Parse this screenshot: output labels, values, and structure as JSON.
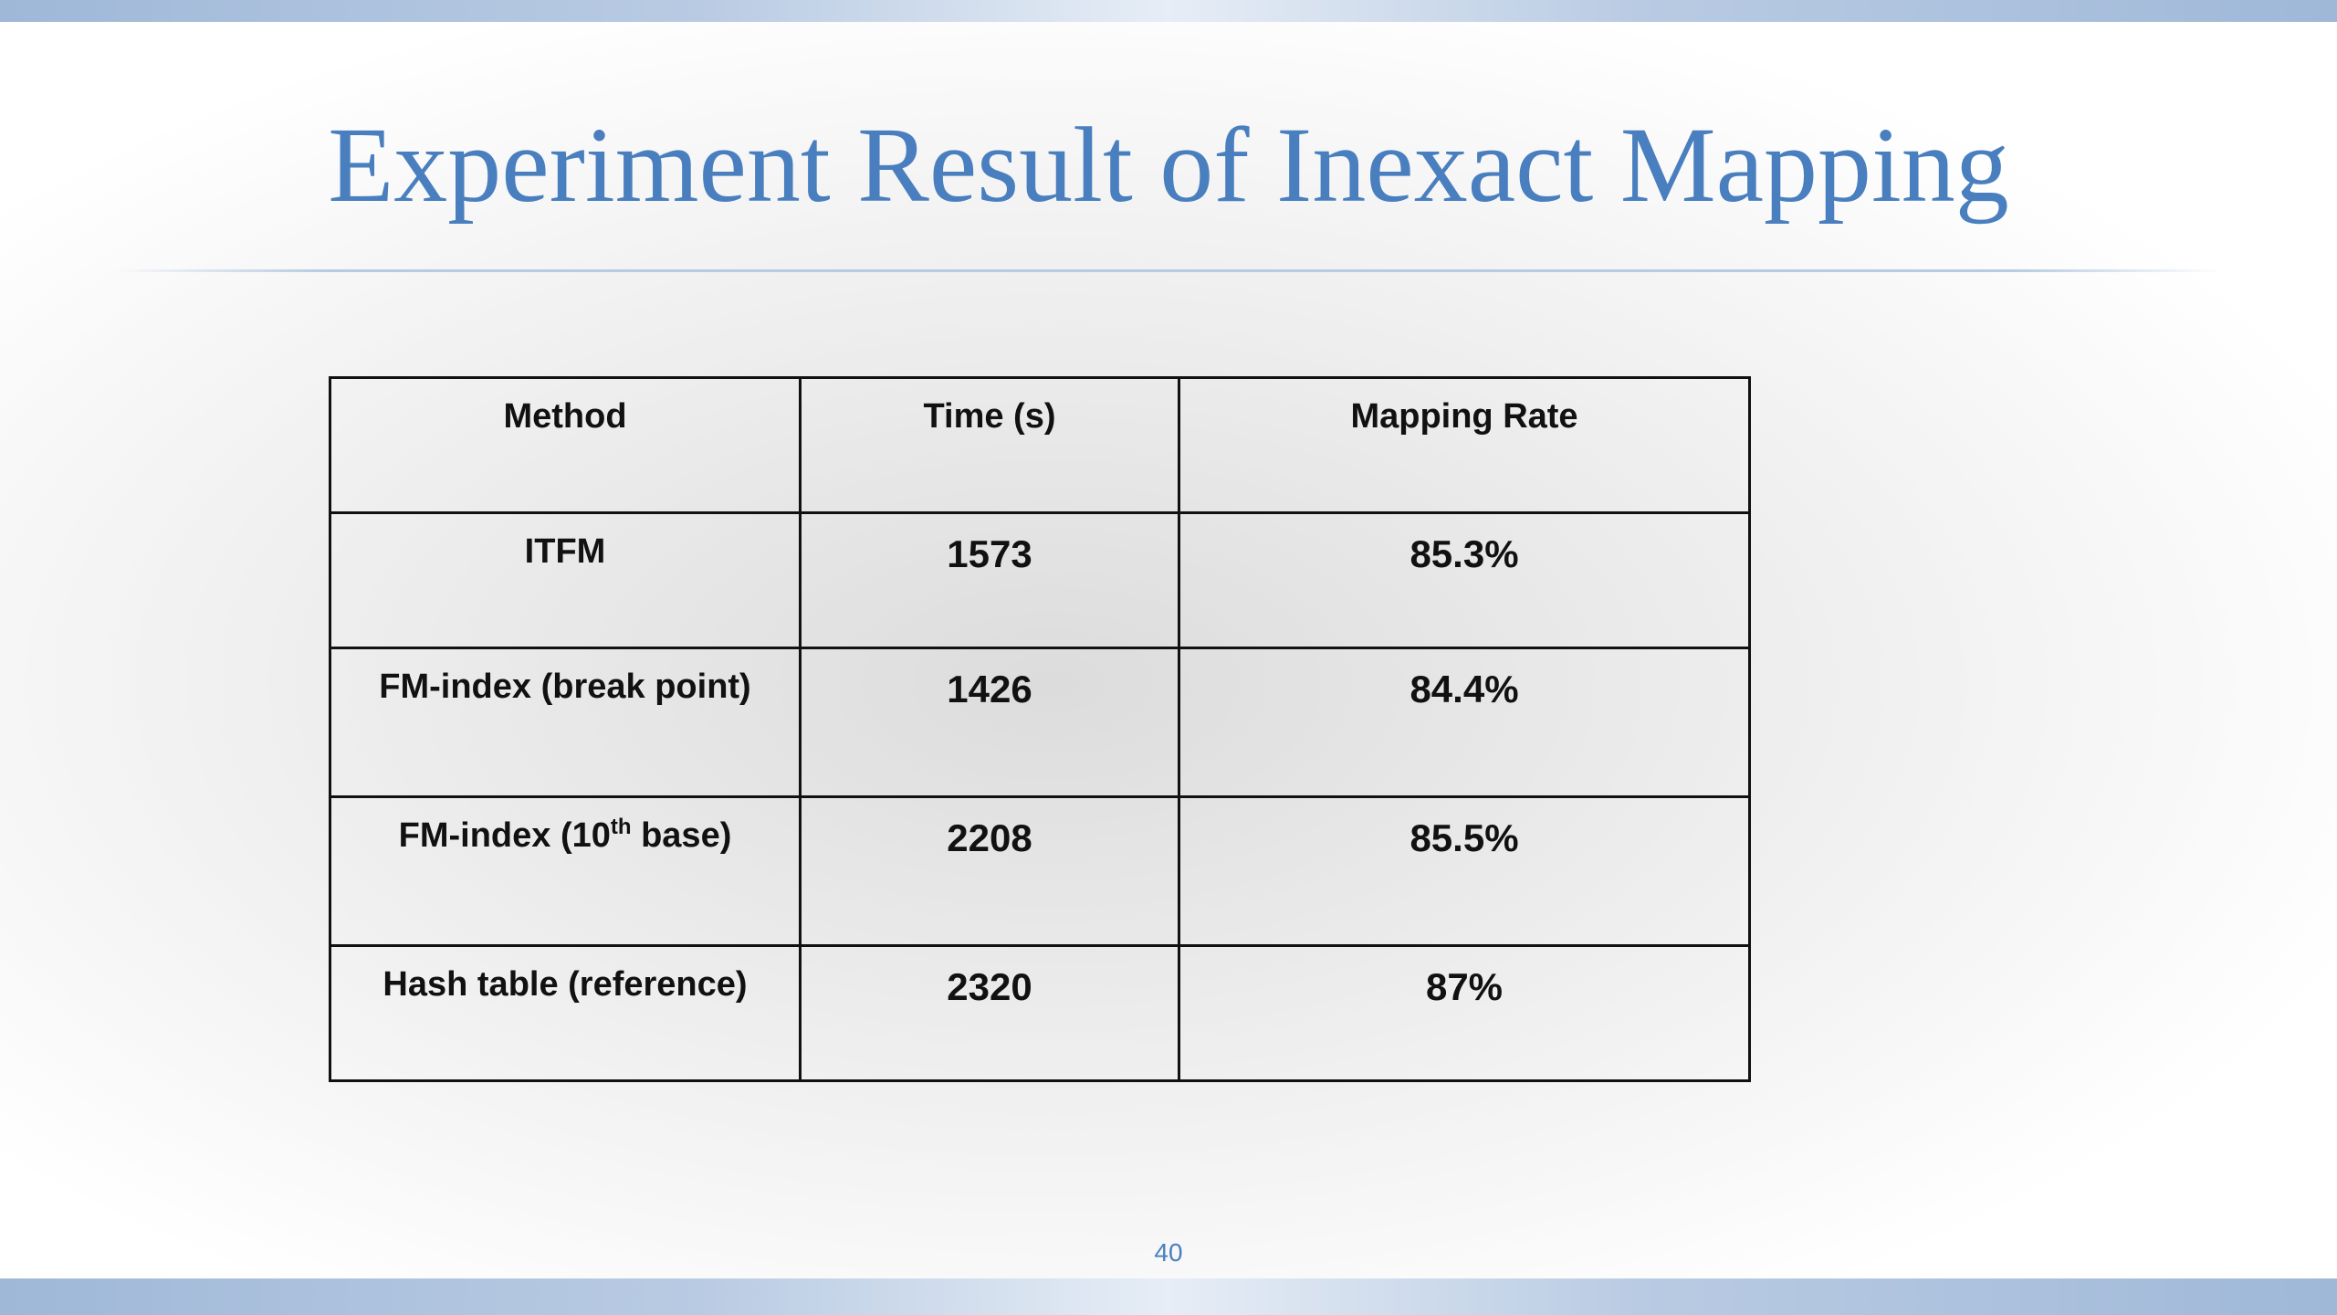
{
  "slide": {
    "title": "Experiment Result of Inexact Mapping",
    "page_number": "40",
    "title_color": "#4a7fbf"
  },
  "table": {
    "headers": [
      "Method",
      "Time (s)",
      "Mapping Rate"
    ],
    "rows": [
      {
        "method": "ITFM",
        "time": "1573",
        "rate": "85.3%"
      },
      {
        "method": "FM-index (break point)",
        "time": "1426",
        "rate": "84.4%"
      },
      {
        "method_prefix": "FM-index (10",
        "method_sup": "th",
        "method_suffix": " base)",
        "time": "2208",
        "rate": "85.5%"
      },
      {
        "method": "Hash table (reference)",
        "time": "2320",
        "rate": "87%"
      }
    ]
  }
}
